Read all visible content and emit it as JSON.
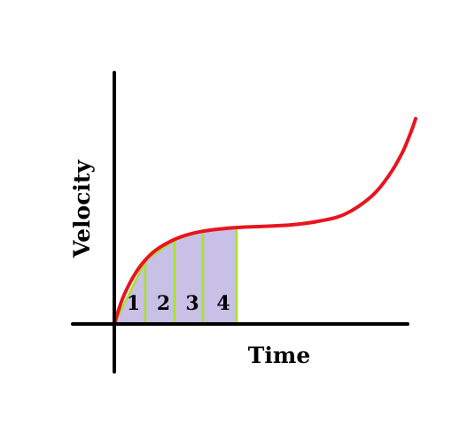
{
  "chart_data": {
    "type": "area",
    "xlabel": "Time",
    "ylabel": "Velocity",
    "curve": {
      "description_free": true,
      "color": "#e8141f",
      "x": [
        0,
        0.1,
        0.25,
        0.4,
        0.55,
        0.75,
        1.0,
        1.35,
        1.7,
        2.0,
        2.3,
        2.6,
        2.9,
        3.1,
        3.25,
        3.35,
        3.4
      ],
      "y": [
        0,
        0.38,
        0.74,
        0.97,
        1.11,
        1.23,
        1.31,
        1.36,
        1.38,
        1.4,
        1.45,
        1.55,
        1.8,
        2.1,
        2.42,
        2.72,
        2.9
      ]
    },
    "sections": {
      "labels": [
        "1",
        "2",
        "3",
        "4"
      ],
      "boundaries": [
        0,
        0.35,
        0.68,
        1.0,
        1.38
      ],
      "fill_color": "#c8c0e6",
      "edge_color": "#a8e22a"
    },
    "axis_color": "#000000",
    "xlim": [
      0,
      3.5
    ],
    "ylim": [
      0,
      3.0
    ]
  }
}
